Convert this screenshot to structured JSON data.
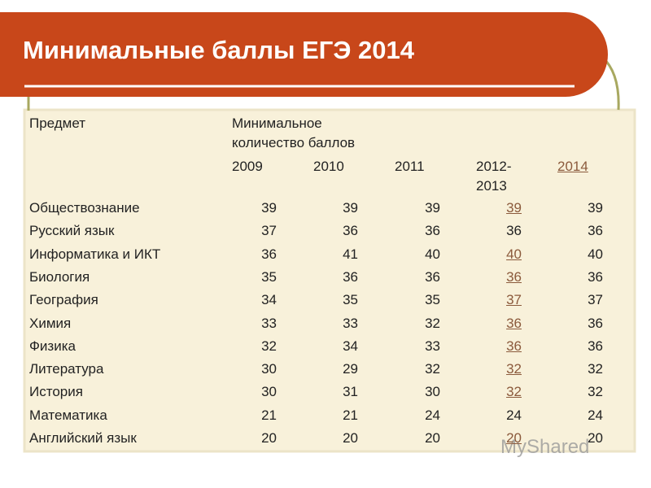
{
  "header": {
    "title": "Минимальные баллы ЕГЭ 2014"
  },
  "table": {
    "subject_header": "Предмет",
    "score_header": [
      "Минимальное",
      "количество баллов"
    ],
    "years": [
      "2009",
      "2010",
      "2011",
      "2012-\n2013",
      "2014"
    ],
    "year_link": [
      false,
      false,
      false,
      false,
      true
    ],
    "rows": [
      {
        "subject": "Обществознание",
        "scores": [
          39,
          39,
          39,
          39,
          39
        ],
        "linked": true
      },
      {
        "subject": "Русский язык",
        "scores": [
          37,
          36,
          36,
          36,
          36
        ],
        "linked": false
      },
      {
        "subject": "Информатика и ИКТ",
        "scores": [
          36,
          41,
          40,
          40,
          40
        ],
        "linked": true
      },
      {
        "subject": "Биология",
        "scores": [
          35,
          36,
          36,
          36,
          36
        ],
        "linked": true
      },
      {
        "subject": "География",
        "scores": [
          34,
          35,
          35,
          37,
          37
        ],
        "linked": true
      },
      {
        "subject": "Химия",
        "scores": [
          33,
          33,
          32,
          36,
          36
        ],
        "linked": true
      },
      {
        "subject": "Физика",
        "scores": [
          32,
          34,
          33,
          36,
          36
        ],
        "linked": true
      },
      {
        "subject": "Литература",
        "scores": [
          30,
          29,
          32,
          32,
          32
        ],
        "linked": true
      },
      {
        "subject": "История",
        "scores": [
          30,
          31,
          30,
          32,
          32
        ],
        "linked": true
      },
      {
        "subject": "Математика",
        "scores": [
          21,
          21,
          24,
          24,
          24
        ],
        "linked": false
      },
      {
        "subject": "Английский язык",
        "scores": [
          20,
          20,
          20,
          20,
          20
        ],
        "linked": true
      }
    ]
  },
  "watermark": "MyShared"
}
